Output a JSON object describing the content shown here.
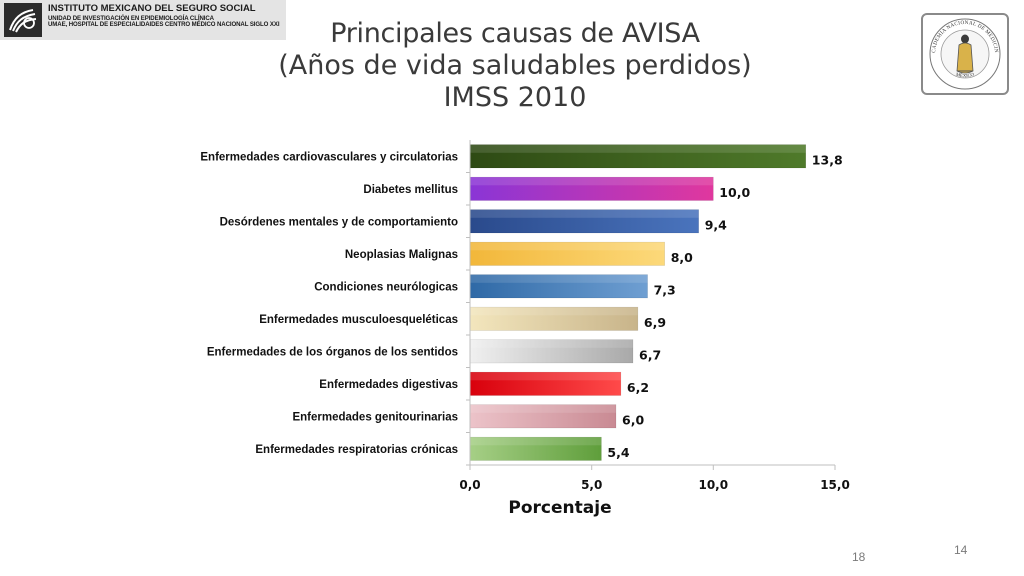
{
  "header": {
    "org_name": "INSTITUTO MEXICANO DEL SEGURO SOCIAL",
    "org_unit": "UNIDAD DE INVESTIGACIÓN EN EPIDEMIOLOGÍA CLÍNICA",
    "org_hospital": "UMAE, HOSPITAL DE ESPECIALIDAIDES CENTRO MÉDICO NACIONAL SIGLO XXI"
  },
  "seal": {
    "text_top": "ACADEMIA NACIONAL DE MEDICINA",
    "text_bottom": "MÉXICO"
  },
  "slide": {
    "title_line1": "Principales causas de AVISA",
    "title_line2": "(Años de vida saludables perdidos)",
    "title_line3": "IMSS 2010",
    "page_number_a": "18",
    "page_number_b": "14"
  },
  "chart_data": {
    "type": "bar",
    "orientation": "horizontal",
    "categories": [
      "Enfermedades cardiovasculares y circulatorias",
      "Diabetes mellitus",
      "Desórdenes mentales y de comportamiento",
      "Neoplasias Malignas",
      "Condiciones neurólogicas",
      "Enfermedades musculoesqueléticas",
      "Enfermedades de los órganos de los sentidos",
      "Enfermedades digestivas",
      "Enfermedades genitourinarias",
      "Enfermedades respiratorias crónicas"
    ],
    "values": [
      13.8,
      10.0,
      9.4,
      8.0,
      7.3,
      6.9,
      6.7,
      6.2,
      6.0,
      5.4
    ],
    "value_labels": [
      "13,8",
      "10,0",
      "9,4",
      "8,0",
      "7,3",
      "6,9",
      "6,7",
      "6,2",
      "6,0",
      "5,4"
    ],
    "bar_colors": [
      [
        "#2e4a14",
        "#4f7a2a"
      ],
      [
        "#8a35d6",
        "#e0379e"
      ],
      [
        "#2a4a8c",
        "#4a74bd"
      ],
      [
        "#f2b73a",
        "#fcd97a"
      ],
      [
        "#2f69a6",
        "#6f9fd2"
      ],
      [
        "#f3e6bd",
        "#c8b48a"
      ],
      [
        "#f0f0f0",
        "#a9a9a9"
      ],
      [
        "#d8000c",
        "#ff4a4a"
      ],
      [
        "#ecc3c9",
        "#c98a93"
      ],
      [
        "#a6cf86",
        "#5f9e3b"
      ]
    ],
    "xlim": [
      0,
      15
    ],
    "xticks": [
      0,
      5,
      10,
      15
    ],
    "xtick_labels": [
      "0,0",
      "5,0",
      "10,0",
      "15,0"
    ],
    "xlabel": "Porcentaje",
    "ylabel": "",
    "grid": false,
    "legend": "none"
  }
}
